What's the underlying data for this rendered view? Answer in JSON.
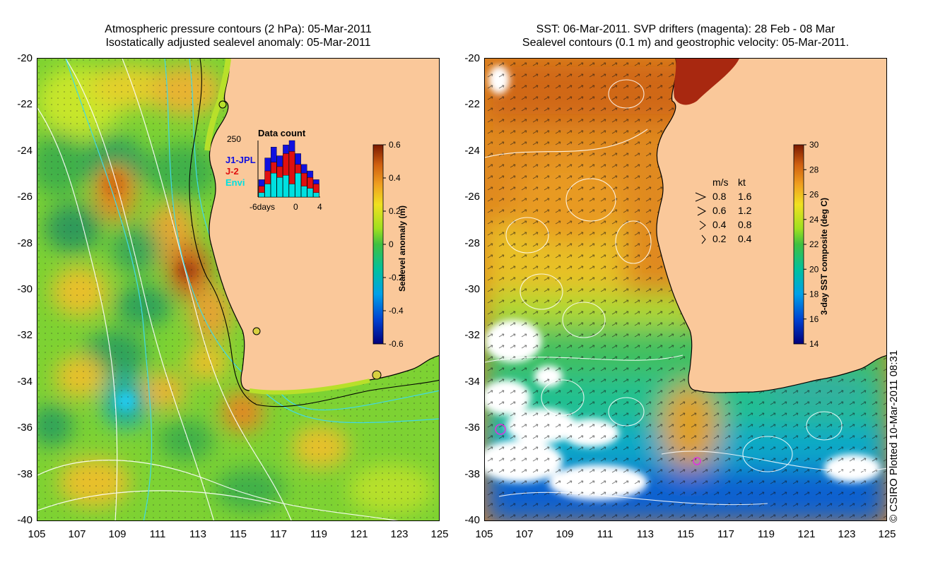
{
  "left_panel": {
    "title_line1": "Atmospheric pressure contours (2 hPa): 05-Mar-2011",
    "title_line2": "Isostatically adjusted sealevel anomaly: 05-Mar-2011",
    "y_ticks": [
      "-20",
      "-22",
      "-24",
      "-26",
      "-28",
      "-30",
      "-32",
      "-34",
      "-36",
      "-38",
      "-40"
    ],
    "x_ticks": [
      "105",
      "107",
      "109",
      "111",
      "113",
      "115",
      "117",
      "119",
      "121",
      "123",
      "125"
    ],
    "colorbar": {
      "label": "Sealevel anomaly (m)",
      "ticks": [
        "0.6",
        "0.4",
        "0.2",
        "0",
        "-0.2",
        "-0.4",
        "-0.6"
      ]
    },
    "inset": {
      "title": "Data count",
      "y_label": "250",
      "legend": [
        "J1-JPL",
        "J-2",
        "Envi"
      ],
      "legend_colors": [
        "#1010e0",
        "#e01010",
        "#00e0e0"
      ],
      "x_labels": [
        "-6days",
        "0",
        "4"
      ],
      "bars": [
        {
          "j1": 80,
          "j2": 50,
          "envi": 20
        },
        {
          "j1": 180,
          "j2": 120,
          "envi": 60
        },
        {
          "j1": 230,
          "j2": 160,
          "envi": 110
        },
        {
          "j1": 190,
          "j2": 140,
          "envi": 90
        },
        {
          "j1": 240,
          "j2": 200,
          "envi": 100
        },
        {
          "j1": 260,
          "j2": 210,
          "envi": 60
        },
        {
          "j1": 200,
          "j2": 150,
          "envi": 110
        },
        {
          "j1": 150,
          "j2": 110,
          "envi": 50
        },
        {
          "j1": 120,
          "j2": 90,
          "envi": 40
        },
        {
          "j1": 80,
          "j2": 60,
          "envi": 20
        }
      ]
    }
  },
  "right_panel": {
    "title_line1": "SST: 06-Mar-2011. SVP drifters (magenta): 28 Feb - 08 Mar",
    "title_line2": "Sealevel contours (0.1 m) and geostrophic velocity: 05-Mar-2011.",
    "y_ticks": [
      "-20",
      "-22",
      "-24",
      "-26",
      "-28",
      "-30",
      "-32",
      "-34",
      "-36",
      "-38",
      "-40"
    ],
    "x_ticks": [
      "105",
      "107",
      "109",
      "111",
      "113",
      "115",
      "117",
      "119",
      "121",
      "123",
      "125"
    ],
    "colorbar": {
      "label": "3-day SST composite (deg C)",
      "ticks": [
        "30",
        "28",
        "26",
        "24",
        "22",
        "20",
        "18",
        "16",
        "14"
      ]
    },
    "velocity_legend": {
      "header_ms": "m/s",
      "header_kt": "kt",
      "rows": [
        {
          "ms": "0.8",
          "kt": "1.6"
        },
        {
          "ms": "0.6",
          "kt": "1.2"
        },
        {
          "ms": "0.4",
          "kt": "0.8"
        },
        {
          "ms": "0.2",
          "kt": "0.4"
        }
      ]
    }
  },
  "credit": "© CSIRO Plotted 10-Mar-2011 08:31"
}
